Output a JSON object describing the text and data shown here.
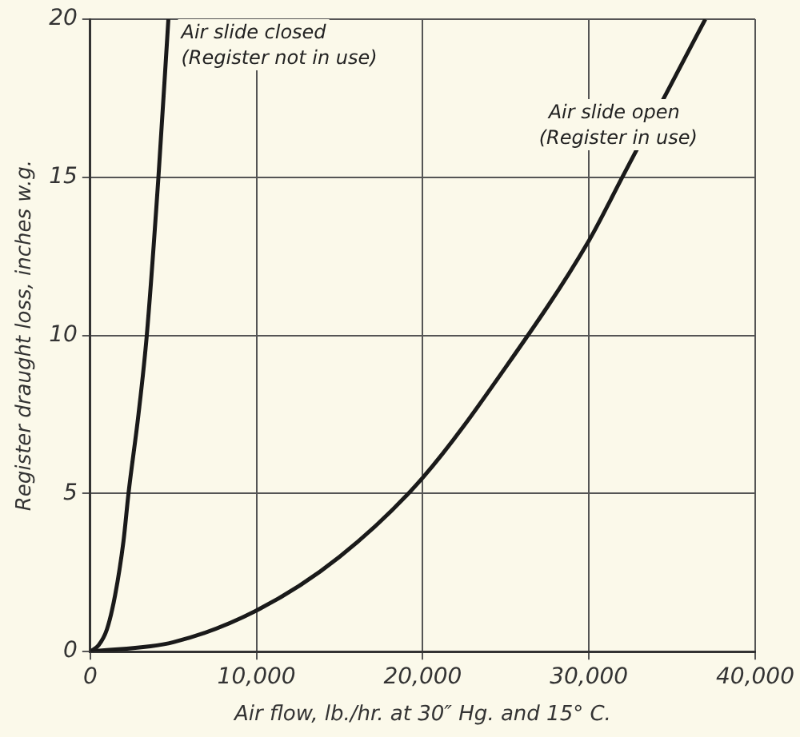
{
  "chart_data": {
    "type": "line",
    "xlabel": "Air flow, lb./hr. at 30″ Hg. and 15° C.",
    "ylabel": "Register draught loss, inches w.g.",
    "series": [
      {
        "name": "Air slide closed (Register not in use)",
        "color": "#1a1a1a",
        "x": [
          0,
          500,
          1000,
          1500,
          2000,
          2300,
          2900,
          3400,
          4100,
          4700
        ],
        "values": [
          0,
          0.2,
          0.7,
          1.8,
          3.5,
          5,
          7.5,
          10,
          15,
          20
        ]
      },
      {
        "name": "Air slide open (Register in use)",
        "color": "#1a1a1a",
        "x": [
          0,
          5000,
          10000,
          15000,
          20000,
          25000,
          30000,
          32000,
          35000,
          37000
        ],
        "values": [
          0,
          0.3,
          1.3,
          3,
          5.5,
          9,
          13,
          15,
          18,
          20
        ]
      }
    ],
    "xlim": [
      0,
      40000
    ],
    "xticks": [
      0,
      {
        "value": 10000,
        "label": "10,000"
      },
      {
        "value": 20000,
        "label": "20,000"
      },
      {
        "value": 30000,
        "label": "30,000"
      },
      {
        "value": 40000,
        "label": "40,000"
      }
    ],
    "ylim": [
      0,
      20
    ],
    "yticks": [
      0,
      5,
      10,
      15,
      20
    ],
    "grid": true,
    "legend": false,
    "marker": "none",
    "line_style": "solid"
  }
}
